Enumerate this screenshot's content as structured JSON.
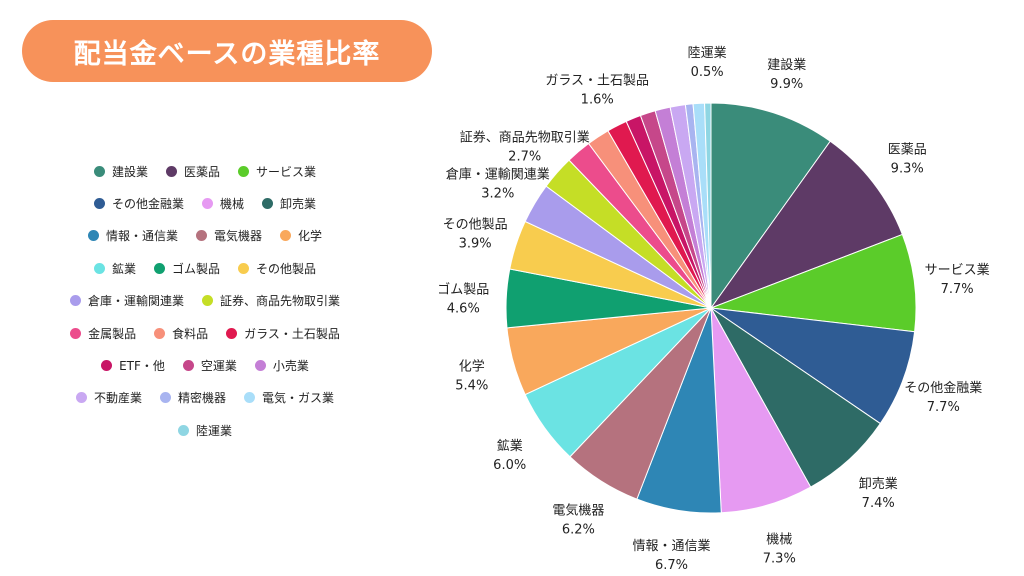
{
  "header": {
    "title": "配当金ベースの業種比率"
  },
  "chart_data": {
    "type": "pie",
    "title": "配当金ベースの業種比率",
    "legend_position": "left",
    "start_angle_deg": 0,
    "direction": "clockwise",
    "slices": [
      {
        "name": "建設業",
        "value": 9.9,
        "label": "9.9%",
        "color": "#3A8C7A",
        "show_label": true
      },
      {
        "name": "医薬品",
        "value": 9.3,
        "label": "9.3%",
        "color": "#5E3A66",
        "show_label": true
      },
      {
        "name": "サービス業",
        "value": 7.7,
        "label": "7.7%",
        "color": "#5BCC2A",
        "show_label": true
      },
      {
        "name": "その他金融業",
        "value": 7.7,
        "label": "7.7%",
        "color": "#2F5C94",
        "show_label": true
      },
      {
        "name": "卸売業",
        "value": 7.4,
        "label": "7.4%",
        "color": "#2E6B66",
        "show_label": true
      },
      {
        "name": "機械",
        "value": 7.3,
        "label": "7.3%",
        "color": "#E69AF2",
        "show_label": true
      },
      {
        "name": "情報・通信業",
        "value": 6.7,
        "label": "6.7%",
        "color": "#2E86B5",
        "show_label": true
      },
      {
        "name": "電気機器",
        "value": 6.2,
        "label": "6.2%",
        "color": "#B5727E",
        "show_label": true
      },
      {
        "name": "鉱業",
        "value": 6.0,
        "label": "6.0%",
        "color": "#6BE3E3",
        "show_label": true
      },
      {
        "name": "化学",
        "value": 5.4,
        "label": "5.4%",
        "color": "#F9A85C",
        "show_label": true
      },
      {
        "name": "ゴム製品",
        "value": 4.6,
        "label": "4.6%",
        "color": "#10A070",
        "show_label": true
      },
      {
        "name": "その他製品",
        "value": 3.9,
        "label": "3.9%",
        "color": "#F8CC4E",
        "show_label": true
      },
      {
        "name": "倉庫・運輸関連業",
        "value": 3.2,
        "label": "3.2%",
        "color": "#A99CEC",
        "show_label": true
      },
      {
        "name": "証券、商品先物取引業",
        "value": 2.7,
        "label": "2.7%",
        "color": "#C5DE26",
        "show_label": true
      },
      {
        "name": "金属製品",
        "value": 2.0,
        "label": "",
        "color": "#EC4C8C",
        "show_label": false
      },
      {
        "name": "食料品",
        "value": 1.8,
        "label": "",
        "color": "#F7907A",
        "show_label": false
      },
      {
        "name": "ガラス・土石製品",
        "value": 1.6,
        "label": "1.6%",
        "color": "#E0194F",
        "show_label": true
      },
      {
        "name": "ETF・他",
        "value": 1.2,
        "label": "",
        "color": "#C81566",
        "show_label": false
      },
      {
        "name": "空運業",
        "value": 1.2,
        "label": "",
        "color": "#C6478A",
        "show_label": false
      },
      {
        "name": "小売業",
        "value": 1.2,
        "label": "",
        "color": "#C47FD6",
        "show_label": false
      },
      {
        "name": "不動産業",
        "value": 1.2,
        "label": "",
        "color": "#C9A8F2",
        "show_label": false
      },
      {
        "name": "精密機器",
        "value": 0.6,
        "label": "",
        "color": "#A8B4F0",
        "show_label": false
      },
      {
        "name": "電気・ガス業",
        "value": 0.9,
        "label": "",
        "color": "#A9DEF9",
        "show_label": false
      },
      {
        "name": "陸運業",
        "value": 0.5,
        "label": "0.5%",
        "color": "#8FD6E3",
        "show_label": true
      }
    ]
  },
  "legend_rows": [
    [
      "建設業",
      "医薬品",
      "サービス業"
    ],
    [
      "その他金融業",
      "機械",
      "卸売業"
    ],
    [
      "情報・通信業",
      "電気機器",
      "化学"
    ],
    [
      "鉱業",
      "ゴム製品",
      "その他製品"
    ],
    [
      "倉庫・運輸関連業",
      "証券、商品先物取引業"
    ],
    [
      "金属製品",
      "食料品",
      "ガラス・土石製品"
    ],
    [
      "ETF・他",
      "空運業",
      "小売業"
    ],
    [
      "不動産業",
      "精密機器",
      "電気・ガス業"
    ],
    [
      "陸運業"
    ]
  ]
}
